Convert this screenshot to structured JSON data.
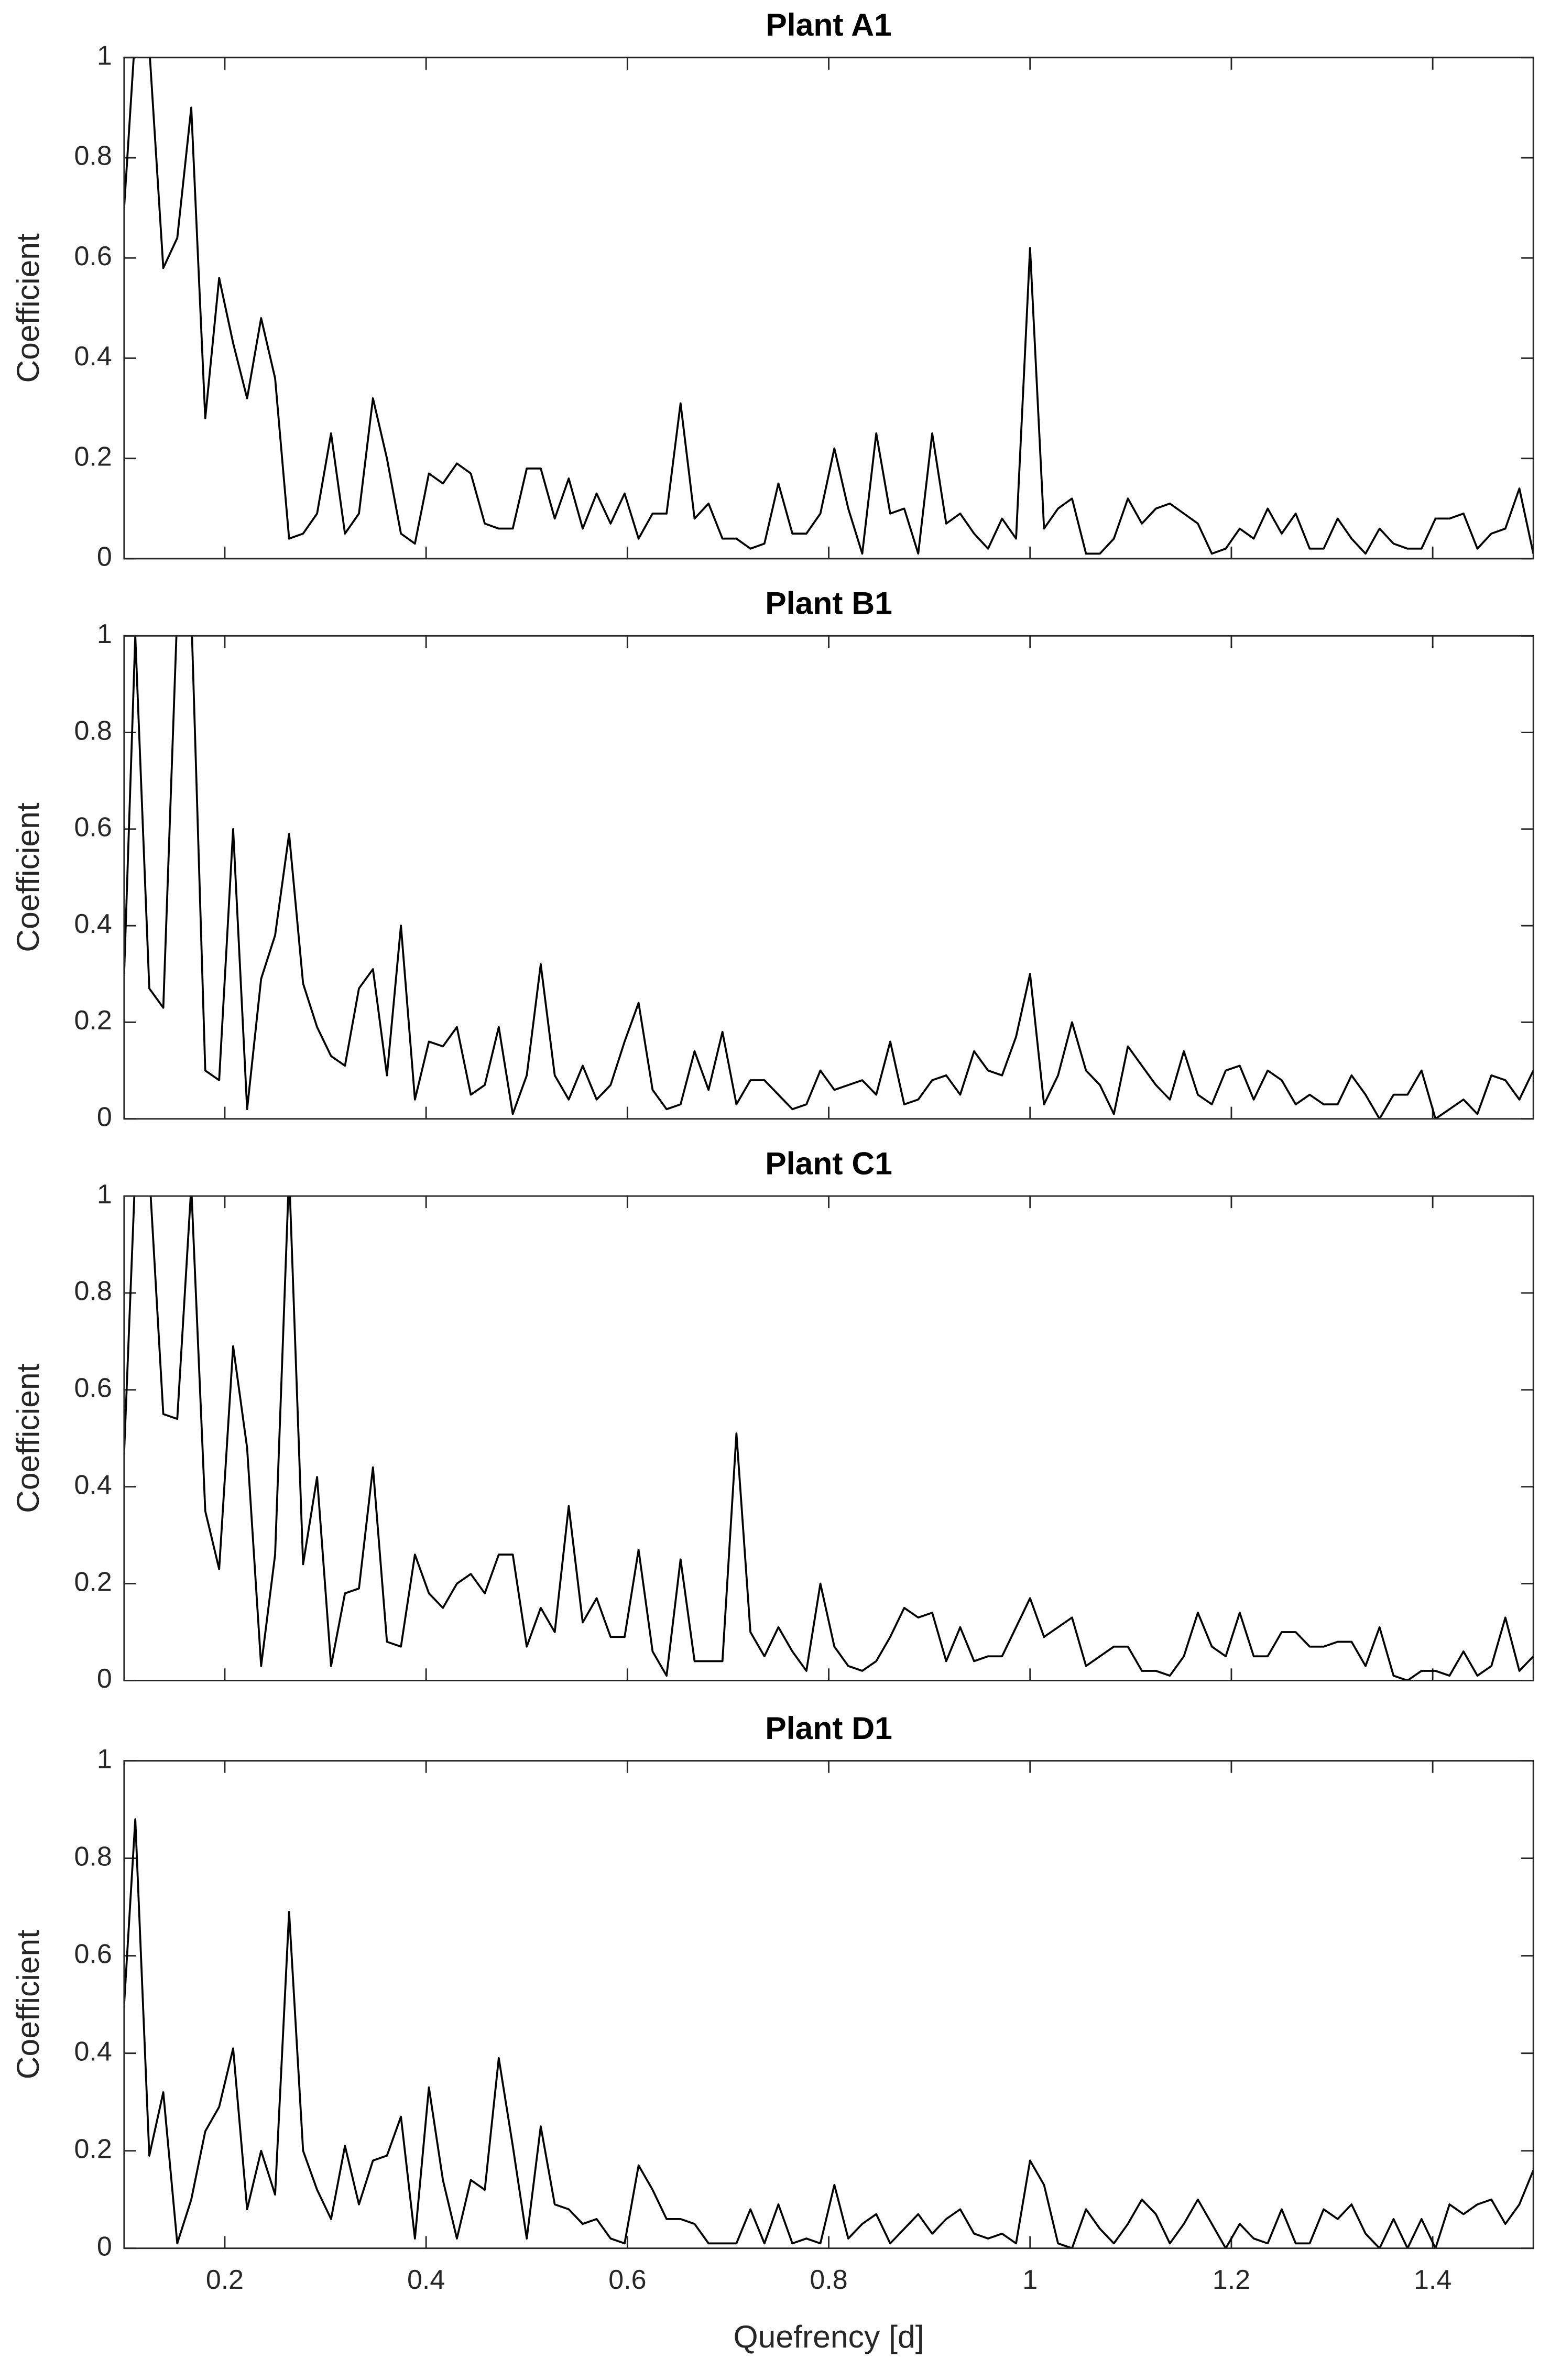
{
  "chart_data": [
    {
      "type": "line",
      "title": "Plant A1",
      "y_label": "Coefficient",
      "x": [
        0.1,
        0.1111,
        0.125,
        0.1389,
        0.1528,
        0.1667,
        0.1806,
        0.1944,
        0.2083,
        0.2222,
        0.2361,
        0.25,
        0.2639,
        0.2778,
        0.2917,
        0.3056,
        0.3194,
        0.3333,
        0.3472,
        0.3611,
        0.375,
        0.3889,
        0.4028,
        0.4167,
        0.4306,
        0.4444,
        0.4583,
        0.4722,
        0.4861,
        0.5,
        0.5139,
        0.5278,
        0.5417,
        0.5556,
        0.5694,
        0.5833,
        0.5972,
        0.6111,
        0.625,
        0.6389,
        0.6528,
        0.6667,
        0.6806,
        0.6944,
        0.7083,
        0.7222,
        0.7361,
        0.75,
        0.7639,
        0.7778,
        0.7917,
        0.8056,
        0.8194,
        0.8333,
        0.8472,
        0.8611,
        0.875,
        0.8889,
        0.9028,
        0.9167,
        0.9306,
        0.9444,
        0.9583,
        0.9722,
        0.9861,
        1,
        1.0139,
        1.0278,
        1.0417,
        1.0556,
        1.0694,
        1.0833,
        1.0972,
        1.1111,
        1.125,
        1.1389,
        1.1528,
        1.1667,
        1.1806,
        1.1944,
        1.2083,
        1.2222,
        1.2361,
        1.25,
        1.2639,
        1.2778,
        1.2917,
        1.3056,
        1.3194,
        1.3333,
        1.3472,
        1.3611,
        1.375,
        1.3889,
        1.4028,
        1.4167,
        1.4306,
        1.4444,
        1.4583,
        1.4722,
        1.4861,
        1.5
      ],
      "values": [
        0.7,
        1.05,
        1.02,
        0.58,
        0.64,
        0.9,
        0.28,
        0.56,
        0.43,
        0.32,
        0.48,
        0.36,
        0.04,
        0.05,
        0.09,
        0.25,
        0.05,
        0.09,
        0.32,
        0.2,
        0.05,
        0.03,
        0.17,
        0.15,
        0.19,
        0.17,
        0.07,
        0.06,
        0.06,
        0.18,
        0.18,
        0.08,
        0.16,
        0.06,
        0.13,
        0.07,
        0.13,
        0.04,
        0.09,
        0.09,
        0.31,
        0.08,
        0.11,
        0.04,
        0.04,
        0.02,
        0.03,
        0.15,
        0.05,
        0.05,
        0.09,
        0.22,
        0.1,
        0.01,
        0.25,
        0.09,
        0.1,
        0.01,
        0.25,
        0.07,
        0.09,
        0.05,
        0.02,
        0.08,
        0.04,
        0.62,
        0.06,
        0.1,
        0.12,
        0.01,
        0.01,
        0.04,
        0.12,
        0.07,
        0.1,
        0.11,
        0.09,
        0.07,
        0.01,
        0.02,
        0.06,
        0.04,
        0.1,
        0.05,
        0.09,
        0.02,
        0.02,
        0.08,
        0.04,
        0.01,
        0.06,
        0.03,
        0.02,
        0.02,
        0.08,
        0.08,
        0.09,
        0.02,
        0.05,
        0.06,
        0.14,
        0.01
      ],
      "color": "#000000",
      "xlim": [
        0.1,
        1.5
      ],
      "ylim": [
        0,
        1
      ],
      "yticks": [
        0,
        0.2,
        0.4,
        0.6,
        0.8,
        1
      ]
    },
    {
      "type": "line",
      "title": "Plant B1",
      "y_label": "Coefficient",
      "x": [
        0.1,
        0.1111,
        0.125,
        0.1389,
        0.1528,
        0.1667,
        0.1806,
        0.1944,
        0.2083,
        0.2222,
        0.2361,
        0.25,
        0.2639,
        0.2778,
        0.2917,
        0.3056,
        0.3194,
        0.3333,
        0.3472,
        0.3611,
        0.375,
        0.3889,
        0.4028,
        0.4167,
        0.4306,
        0.4444,
        0.4583,
        0.4722,
        0.4861,
        0.5,
        0.5139,
        0.5278,
        0.5417,
        0.5556,
        0.5694,
        0.5833,
        0.5972,
        0.6111,
        0.625,
        0.6389,
        0.6528,
        0.6667,
        0.6806,
        0.6944,
        0.7083,
        0.7222,
        0.7361,
        0.75,
        0.7639,
        0.7778,
        0.7917,
        0.8056,
        0.8194,
        0.8333,
        0.8472,
        0.8611,
        0.875,
        0.8889,
        0.9028,
        0.9167,
        0.9306,
        0.9444,
        0.9583,
        0.9722,
        0.9861,
        1,
        1.0139,
        1.0278,
        1.0417,
        1.0556,
        1.0694,
        1.0833,
        1.0972,
        1.1111,
        1.125,
        1.1389,
        1.1528,
        1.1667,
        1.1806,
        1.1944,
        1.2083,
        1.2222,
        1.2361,
        1.25,
        1.2639,
        1.2778,
        1.2917,
        1.3056,
        1.3194,
        1.3333,
        1.3472,
        1.3611,
        1.375,
        1.3889,
        1.4028,
        1.4167,
        1.4306,
        1.4444,
        1.4583,
        1.4722,
        1.4861,
        1.5
      ],
      "values": [
        0.3,
        1.0,
        0.27,
        0.23,
        1.05,
        1.05,
        0.1,
        0.08,
        0.6,
        0.02,
        0.29,
        0.38,
        0.59,
        0.28,
        0.19,
        0.13,
        0.11,
        0.27,
        0.31,
        0.09,
        0.4,
        0.04,
        0.16,
        0.15,
        0.19,
        0.05,
        0.07,
        0.19,
        0.01,
        0.09,
        0.32,
        0.09,
        0.04,
        0.11,
        0.04,
        0.07,
        0.16,
        0.24,
        0.06,
        0.02,
        0.03,
        0.14,
        0.06,
        0.18,
        0.03,
        0.08,
        0.08,
        0.05,
        0.02,
        0.03,
        0.1,
        0.06,
        0.07,
        0.08,
        0.05,
        0.16,
        0.03,
        0.04,
        0.08,
        0.09,
        0.05,
        0.14,
        0.1,
        0.09,
        0.17,
        0.3,
        0.03,
        0.09,
        0.2,
        0.1,
        0.07,
        0.01,
        0.15,
        0.11,
        0.07,
        0.04,
        0.14,
        0.05,
        0.03,
        0.1,
        0.11,
        0.04,
        0.1,
        0.08,
        0.03,
        0.05,
        0.03,
        0.03,
        0.09,
        0.05,
        0.0,
        0.05,
        0.05,
        0.1,
        0.0,
        0.02,
        0.04,
        0.01,
        0.09,
        0.08,
        0.04,
        0.1
      ],
      "color": "#000000",
      "xlim": [
        0.1,
        1.5
      ],
      "ylim": [
        0,
        1
      ],
      "yticks": [
        0,
        0.2,
        0.4,
        0.6,
        0.8,
        1
      ]
    },
    {
      "type": "line",
      "title": "Plant C1",
      "y_label": "Coefficient",
      "x": [
        0.1,
        0.1111,
        0.125,
        0.1389,
        0.1528,
        0.1667,
        0.1806,
        0.1944,
        0.2083,
        0.2222,
        0.2361,
        0.25,
        0.2639,
        0.2778,
        0.2917,
        0.3056,
        0.3194,
        0.3333,
        0.3472,
        0.3611,
        0.375,
        0.3889,
        0.4028,
        0.4167,
        0.4306,
        0.4444,
        0.4583,
        0.4722,
        0.4861,
        0.5,
        0.5139,
        0.5278,
        0.5417,
        0.5556,
        0.5694,
        0.5833,
        0.5972,
        0.6111,
        0.625,
        0.6389,
        0.6528,
        0.6667,
        0.6806,
        0.6944,
        0.7083,
        0.7222,
        0.7361,
        0.75,
        0.7639,
        0.7778,
        0.7917,
        0.8056,
        0.8194,
        0.8333,
        0.8472,
        0.8611,
        0.875,
        0.8889,
        0.9028,
        0.9167,
        0.9306,
        0.9444,
        0.9583,
        0.9722,
        0.9861,
        1,
        1.0139,
        1.0278,
        1.0417,
        1.0556,
        1.0694,
        1.0833,
        1.0972,
        1.1111,
        1.125,
        1.1389,
        1.1528,
        1.1667,
        1.1806,
        1.1944,
        1.2083,
        1.2222,
        1.2361,
        1.25,
        1.2639,
        1.2778,
        1.2917,
        1.3056,
        1.3194,
        1.3333,
        1.3472,
        1.3611,
        1.375,
        1.3889,
        1.4028,
        1.4167,
        1.4306,
        1.4444,
        1.4583,
        1.4722,
        1.4861,
        1.5
      ],
      "values": [
        0.47,
        1.05,
        1.05,
        0.55,
        0.54,
        1.02,
        0.35,
        0.23,
        0.69,
        0.48,
        0.03,
        0.26,
        1.05,
        0.24,
        0.42,
        0.03,
        0.18,
        0.19,
        0.44,
        0.08,
        0.07,
        0.26,
        0.18,
        0.15,
        0.2,
        0.22,
        0.18,
        0.26,
        0.26,
        0.07,
        0.15,
        0.1,
        0.36,
        0.12,
        0.17,
        0.09,
        0.09,
        0.27,
        0.06,
        0.01,
        0.25,
        0.04,
        0.04,
        0.04,
        0.51,
        0.1,
        0.05,
        0.11,
        0.06,
        0.02,
        0.2,
        0.07,
        0.03,
        0.02,
        0.04,
        0.09,
        0.15,
        0.13,
        0.14,
        0.04,
        0.11,
        0.04,
        0.05,
        0.05,
        0.11,
        0.17,
        0.09,
        0.11,
        0.13,
        0.03,
        0.05,
        0.07,
        0.07,
        0.02,
        0.02,
        0.01,
        0.05,
        0.14,
        0.07,
        0.05,
        0.14,
        0.05,
        0.05,
        0.1,
        0.1,
        0.07,
        0.07,
        0.08,
        0.08,
        0.03,
        0.11,
        0.01,
        0.0,
        0.02,
        0.02,
        0.01,
        0.06,
        0.01,
        0.03,
        0.13,
        0.02,
        0.05
      ],
      "color": "#000000",
      "xlim": [
        0.1,
        1.5
      ],
      "ylim": [
        0,
        1
      ],
      "yticks": [
        0,
        0.2,
        0.4,
        0.6,
        0.8,
        1
      ]
    },
    {
      "type": "line",
      "title": "Plant D1",
      "y_label": "Coefficient",
      "x_label": "Quefrency [d]",
      "x": [
        0.1,
        0.1111,
        0.125,
        0.1389,
        0.1528,
        0.1667,
        0.1806,
        0.1944,
        0.2083,
        0.2222,
        0.2361,
        0.25,
        0.2639,
        0.2778,
        0.2917,
        0.3056,
        0.3194,
        0.3333,
        0.3472,
        0.3611,
        0.375,
        0.3889,
        0.4028,
        0.4167,
        0.4306,
        0.4444,
        0.4583,
        0.4722,
        0.4861,
        0.5,
        0.5139,
        0.5278,
        0.5417,
        0.5556,
        0.5694,
        0.5833,
        0.5972,
        0.6111,
        0.625,
        0.6389,
        0.6528,
        0.6667,
        0.6806,
        0.6944,
        0.7083,
        0.7222,
        0.7361,
        0.75,
        0.7639,
        0.7778,
        0.7917,
        0.8056,
        0.8194,
        0.8333,
        0.8472,
        0.8611,
        0.875,
        0.8889,
        0.9028,
        0.9167,
        0.9306,
        0.9444,
        0.9583,
        0.9722,
        0.9861,
        1,
        1.0139,
        1.0278,
        1.0417,
        1.0556,
        1.0694,
        1.0833,
        1.0972,
        1.1111,
        1.125,
        1.1389,
        1.1528,
        1.1667,
        1.1806,
        1.1944,
        1.2083,
        1.2222,
        1.2361,
        1.25,
        1.2639,
        1.2778,
        1.2917,
        1.3056,
        1.3194,
        1.3333,
        1.3472,
        1.3611,
        1.375,
        1.3889,
        1.4028,
        1.4167,
        1.4306,
        1.4444,
        1.4583,
        1.4722,
        1.4861,
        1.5
      ],
      "values": [
        0.5,
        0.88,
        0.19,
        0.32,
        0.01,
        0.1,
        0.24,
        0.29,
        0.41,
        0.08,
        0.2,
        0.11,
        0.69,
        0.2,
        0.12,
        0.06,
        0.21,
        0.09,
        0.18,
        0.19,
        0.27,
        0.02,
        0.33,
        0.14,
        0.02,
        0.14,
        0.12,
        0.39,
        0.21,
        0.02,
        0.25,
        0.09,
        0.08,
        0.05,
        0.06,
        0.02,
        0.01,
        0.17,
        0.12,
        0.06,
        0.06,
        0.05,
        0.01,
        0.01,
        0.01,
        0.08,
        0.01,
        0.09,
        0.01,
        0.02,
        0.01,
        0.13,
        0.02,
        0.05,
        0.07,
        0.01,
        0.04,
        0.07,
        0.03,
        0.06,
        0.08,
        0.03,
        0.02,
        0.03,
        0.01,
        0.18,
        0.13,
        0.01,
        0.0,
        0.08,
        0.04,
        0.01,
        0.05,
        0.1,
        0.07,
        0.01,
        0.05,
        0.1,
        0.05,
        0.0,
        0.05,
        0.02,
        0.01,
        0.08,
        0.01,
        0.01,
        0.08,
        0.06,
        0.09,
        0.03,
        0.0,
        0.06,
        0.0,
        0.06,
        0.0,
        0.09,
        0.07,
        0.09,
        0.1,
        0.05,
        0.09,
        0.16
      ],
      "color": "#000000",
      "xlim": [
        0.1,
        1.5
      ],
      "ylim": [
        0,
        1
      ],
      "yticks": [
        0,
        0.2,
        0.4,
        0.6,
        0.8,
        1
      ],
      "xticks": [
        0.2,
        0.4,
        0.6,
        0.8,
        1,
        1.2,
        1.4
      ]
    }
  ]
}
